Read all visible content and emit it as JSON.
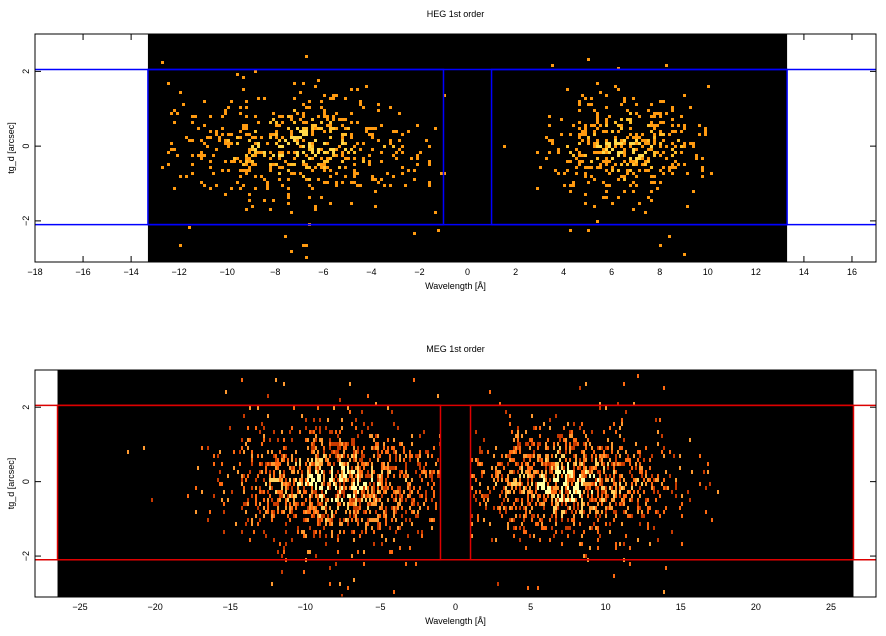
{
  "chart_data": [
    {
      "type": "heatmap",
      "id": "heg",
      "title": "HEG 1st order",
      "xlabel": "Wavelength [Å]",
      "ylabel": "tg_d [arcsec]",
      "xlim": [
        -18,
        17
      ],
      "ylim": [
        -3.1,
        3
      ],
      "x_ticks": [
        -18,
        -16,
        -14,
        -12,
        -10,
        -8,
        -6,
        -4,
        -2,
        0,
        2,
        4,
        6,
        8,
        10,
        12,
        14,
        16
      ],
      "y_ticks": [
        -2,
        0,
        2
      ],
      "image_extent_x": [
        -13.3,
        13.3
      ],
      "background_color": "#000000",
      "event_colors": [
        "#ff9a10",
        "#ffbf2a",
        "#ffd94a"
      ],
      "region_color": "#0000ff",
      "regions": [
        {
          "x": [
            -13.3,
            -1.0
          ],
          "y": [
            -2.1,
            2.05
          ]
        },
        {
          "x": [
            1.0,
            13.3
          ],
          "y": [
            -2.1,
            2.05
          ]
        }
      ],
      "outer_lines_y": [
        -2.1,
        2.05
      ],
      "event_clusters": [
        {
          "x_center": -7.0,
          "x_sigma": 2.8,
          "x_range": [
            -12.8,
            -1.0
          ],
          "y_sigma": 0.7,
          "count": 560
        },
        {
          "x_center": 6.5,
          "x_sigma": 1.8,
          "x_range": [
            1.2,
            10.2
          ],
          "y_sigma": 0.65,
          "count": 400
        }
      ],
      "grid": false
    },
    {
      "type": "heatmap",
      "id": "meg",
      "title": "MEG 1st order",
      "xlabel": "Wavelength [Å]",
      "ylabel": "tg_d [arcsec]",
      "xlim": [
        -28,
        28
      ],
      "ylim": [
        -3.1,
        3
      ],
      "x_ticks": [
        -25,
        -20,
        -15,
        -10,
        -5,
        0,
        5,
        10,
        15,
        20,
        25
      ],
      "y_ticks": [
        -2,
        0,
        2
      ],
      "image_extent_x": [
        -26.5,
        26.5
      ],
      "background_color": "#000000",
      "event_colors": [
        "#c83a00",
        "#ff6a10",
        "#ff9a30",
        "#ffd060",
        "#ffffa0"
      ],
      "region_color": "#dd0000",
      "regions": [
        {
          "x": [
            -26.5,
            -1.0
          ],
          "y": [
            -2.1,
            2.05
          ]
        },
        {
          "x": [
            1.0,
            26.5
          ],
          "y": [
            -2.1,
            2.05
          ]
        }
      ],
      "outer_lines_y": [
        -2.1,
        2.05
      ],
      "event_clusters": [
        {
          "x_center": -8.0,
          "x_sigma": 3.6,
          "x_range": [
            -25.0,
            -1.0
          ],
          "y_sigma": 0.75,
          "count": 1300
        },
        {
          "x_center": 7.5,
          "x_sigma": 3.4,
          "x_range": [
            1.0,
            20.0
          ],
          "y_sigma": 0.7,
          "count": 1200
        }
      ],
      "grid": false
    }
  ]
}
